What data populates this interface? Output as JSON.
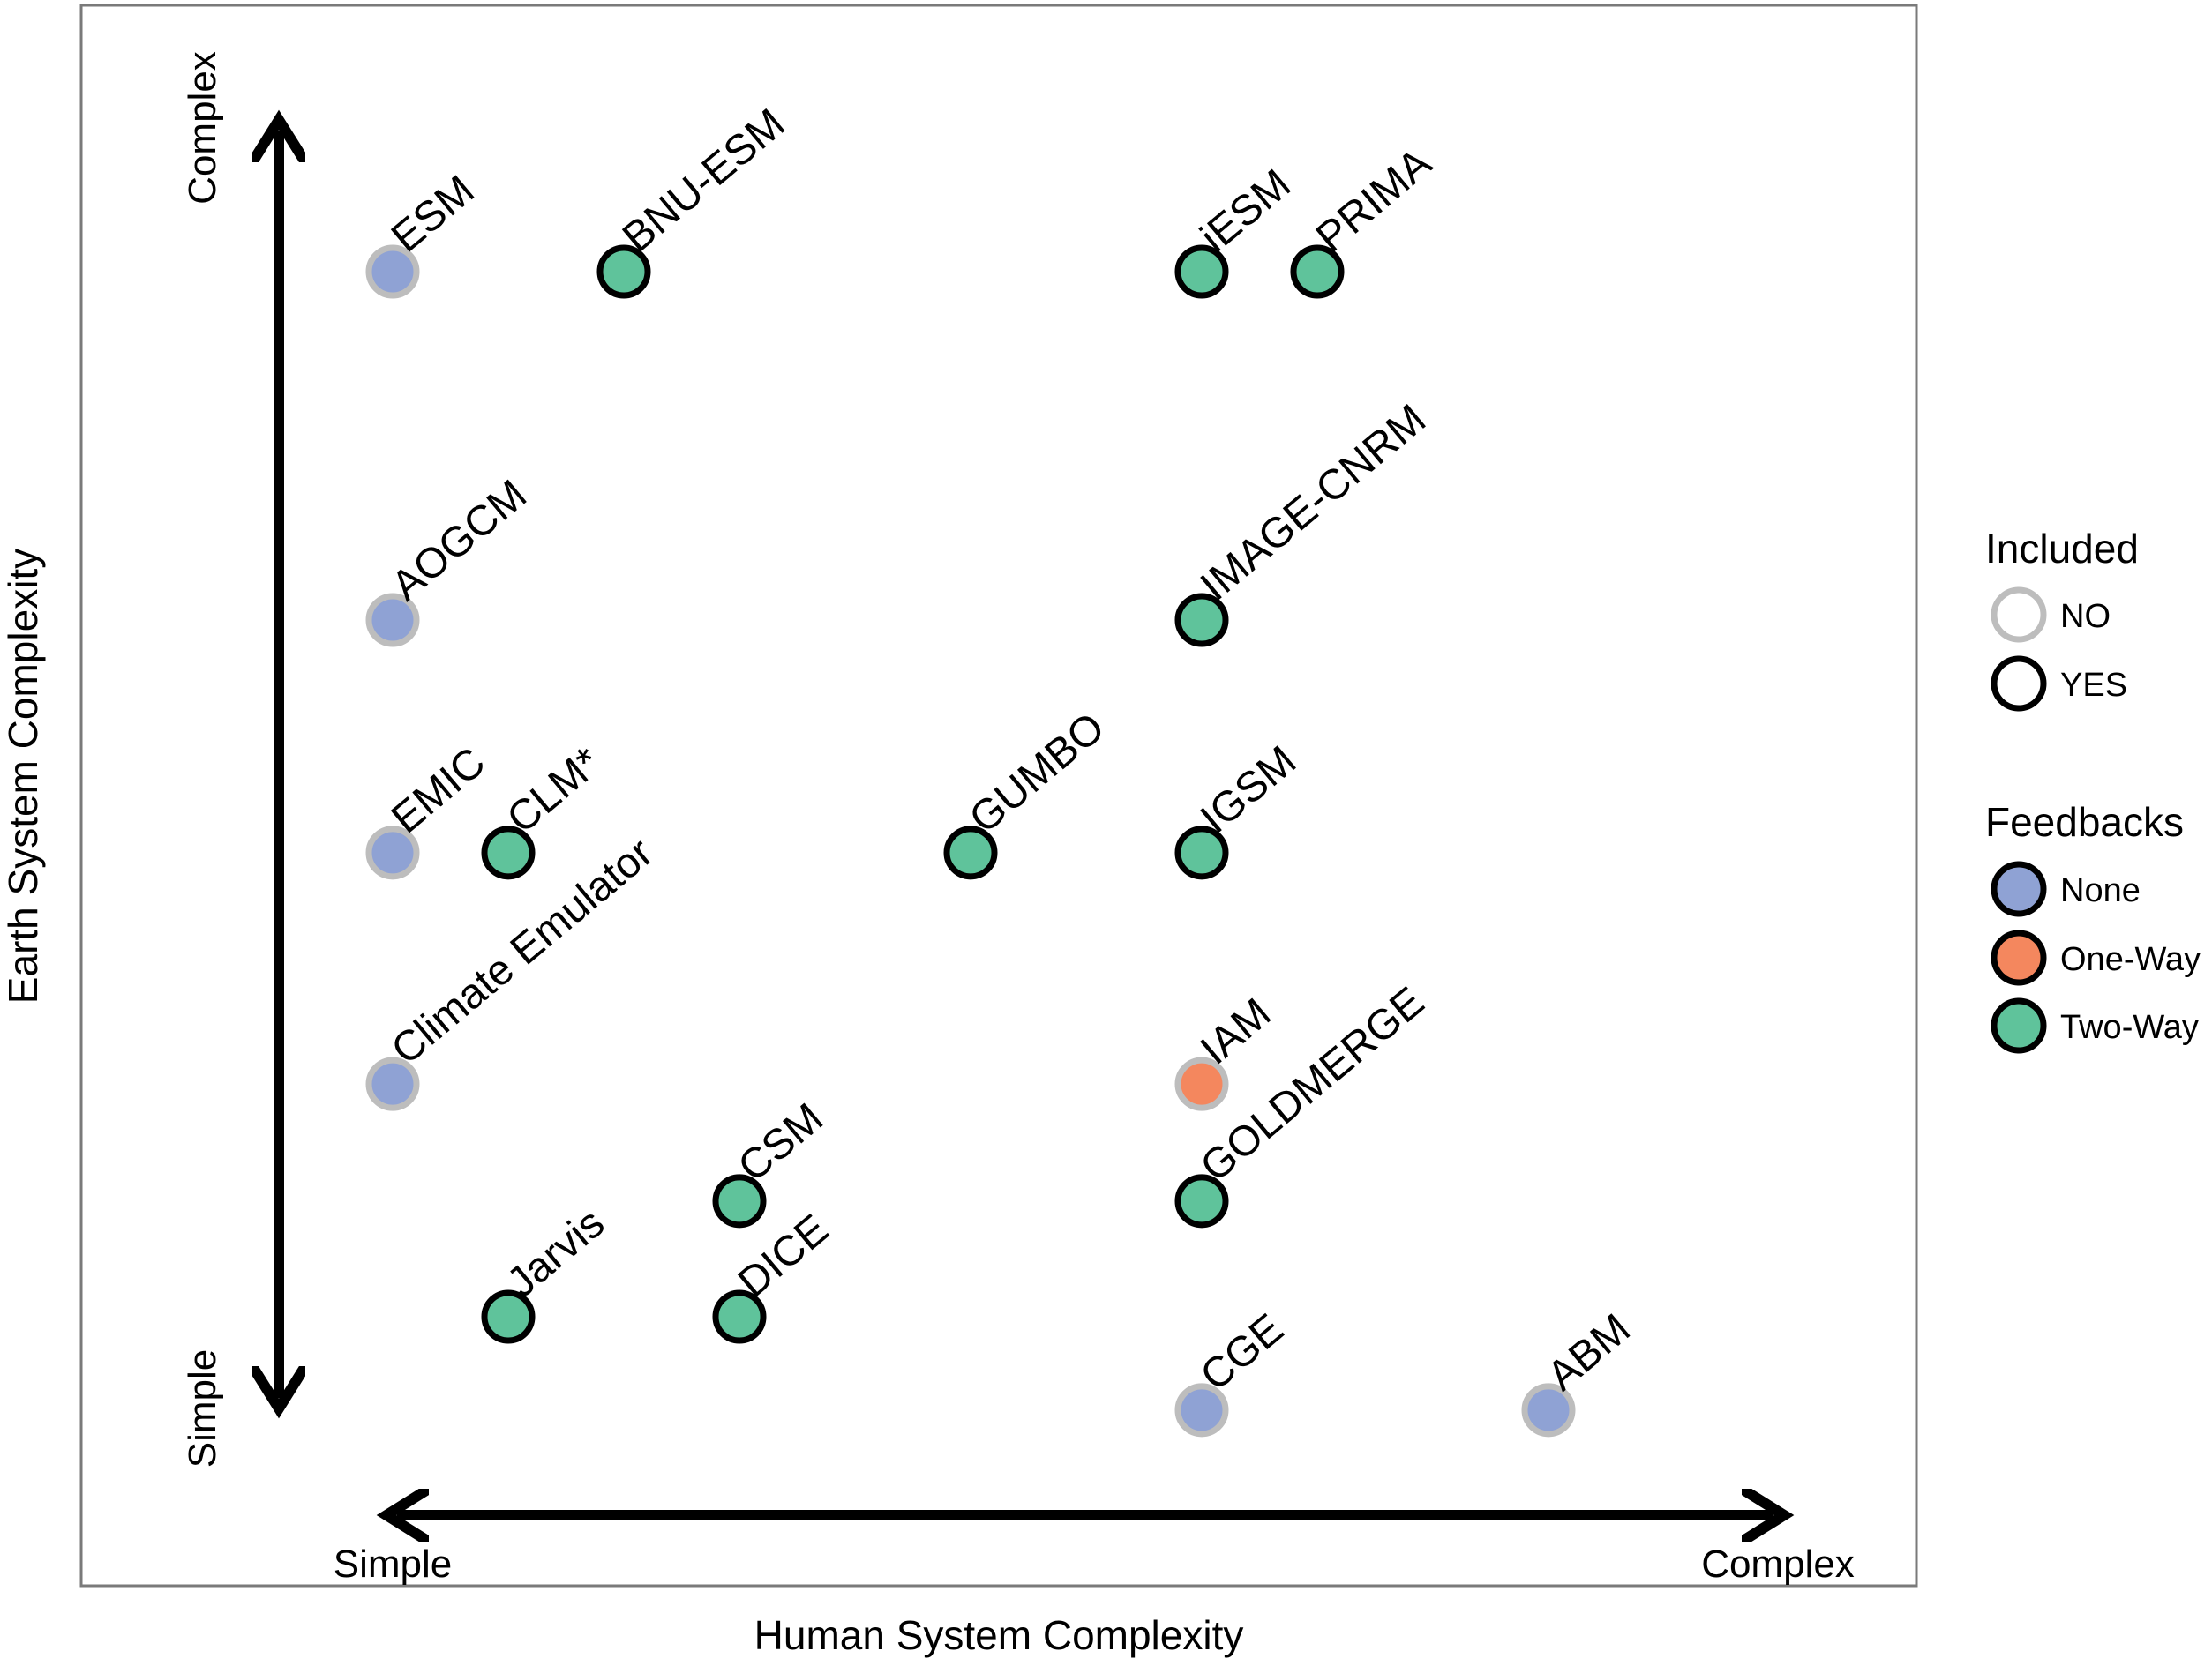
{
  "chart_data": {
    "type": "scatter",
    "title": "",
    "xlabel": "Human System Complexity",
    "ylabel": "Earth System Complexity",
    "x_range_labels": {
      "min": "Simple",
      "max": "Complex"
    },
    "y_range_labels": {
      "min": "Simple",
      "max": "Complex"
    },
    "xlim": [
      0,
      13
    ],
    "ylim": [
      0,
      10
    ],
    "points": [
      {
        "label": "ESM",
        "x": 1,
        "y": 9.0,
        "included": "NO",
        "feedback": "None"
      },
      {
        "label": "BNU-ESM",
        "x": 3,
        "y": 9.0,
        "included": "YES",
        "feedback": "Two-Way"
      },
      {
        "label": "iESM",
        "x": 8,
        "y": 9.0,
        "included": "YES",
        "feedback": "Two-Way"
      },
      {
        "label": "PRIMA",
        "x": 9,
        "y": 9.0,
        "included": "YES",
        "feedback": "Two-Way"
      },
      {
        "label": "AOGCM",
        "x": 1,
        "y": 6.5,
        "included": "NO",
        "feedback": "None"
      },
      {
        "label": "IMAGE-CNRM",
        "x": 8,
        "y": 6.5,
        "included": "YES",
        "feedback": "Two-Way"
      },
      {
        "label": "EMIC",
        "x": 1,
        "y": 4.83,
        "included": "NO",
        "feedback": "None"
      },
      {
        "label": "CLM*",
        "x": 2,
        "y": 4.83,
        "included": "YES",
        "feedback": "Two-Way"
      },
      {
        "label": "GUMBO",
        "x": 6,
        "y": 4.83,
        "included": "YES",
        "feedback": "Two-Way"
      },
      {
        "label": "IGSM",
        "x": 8,
        "y": 4.83,
        "included": "YES",
        "feedback": "Two-Way"
      },
      {
        "label": "Climate Emulator",
        "x": 1,
        "y": 3.17,
        "included": "NO",
        "feedback": "None"
      },
      {
        "label": "IAM",
        "x": 8,
        "y": 3.17,
        "included": "NO",
        "feedback": "One-Way"
      },
      {
        "label": "CSM",
        "x": 4,
        "y": 2.33,
        "included": "YES",
        "feedback": "Two-Way"
      },
      {
        "label": "GOLDMERGE",
        "x": 8,
        "y": 2.33,
        "included": "YES",
        "feedback": "Two-Way"
      },
      {
        "label": "Jarvis",
        "x": 2,
        "y": 1.5,
        "included": "YES",
        "feedback": "Two-Way"
      },
      {
        "label": "DICE",
        "x": 4,
        "y": 1.5,
        "included": "YES",
        "feedback": "Two-Way"
      },
      {
        "label": "CGE",
        "x": 8,
        "y": 0.83,
        "included": "NO",
        "feedback": "None"
      },
      {
        "label": "ABM",
        "x": 11,
        "y": 0.83,
        "included": "NO",
        "feedback": "None"
      }
    ],
    "legend": {
      "placement": "right",
      "included_title": "Included",
      "included_items": [
        {
          "label": "NO",
          "outline": "#bdbdbd"
        },
        {
          "label": "YES",
          "outline": "#000000"
        }
      ],
      "feedbacks_title": "Feedbacks",
      "feedback_items": [
        {
          "label": "None",
          "fill": "#8fa2d4"
        },
        {
          "label": "One-Way",
          "fill": "#f4875e"
        },
        {
          "label": "Two-Way",
          "fill": "#5fc39b"
        }
      ]
    },
    "colors": {
      "None": "#8fa2d4",
      "One-Way": "#f4875e",
      "Two-Way": "#5fc39b",
      "NO": "#bdbdbd",
      "YES": "#000000"
    }
  }
}
